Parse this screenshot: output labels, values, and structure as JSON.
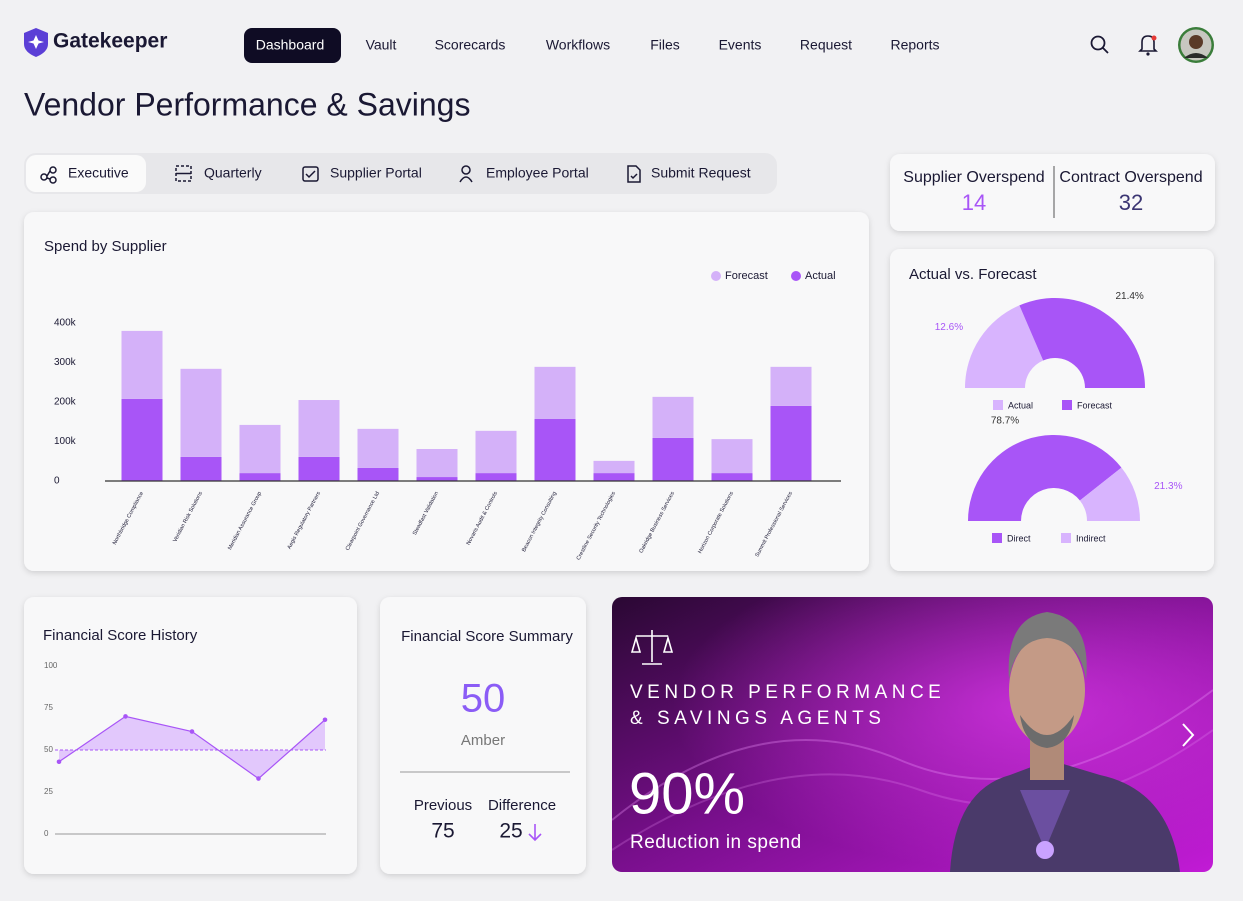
{
  "nav": {
    "brand": "Gatekeeper",
    "items": [
      "Dashboard",
      "Vault",
      "Scorecards",
      "Workflows",
      "Files",
      "Events",
      "Request",
      "Reports"
    ]
  },
  "page_title": "Vendor Performance & Savings",
  "tabs": [
    "Executive",
    "Quarterly",
    "Supplier Portal",
    "Employee Portal",
    "Submit Request"
  ],
  "kpis": [
    {
      "label": "Supplier Overspend",
      "value": 14
    },
    {
      "label": "Contract Overspend",
      "value": 32
    }
  ],
  "summary": {
    "title": "Financial Score Summary",
    "score": 50,
    "status": "Amber",
    "previous_label": "Previous",
    "previous": 75,
    "difference_label": "Difference",
    "difference": 25
  },
  "banner": {
    "lines": [
      "VENDOR PERFORMANCE",
      "& SAVINGS AGENTS"
    ],
    "stat": "90%",
    "caption": "Reduction in spend"
  },
  "chart_data": [
    {
      "type": "bar",
      "title": "Spend by Supplier",
      "stacked": true,
      "categories": [
        "Northbridge Compliance",
        "Veridian Risk Solutions",
        "Meridian Assurance Group",
        "Aegis Regulatory Partners",
        "Clearpoint Governance Ltd",
        "Steadfast Validation",
        "Novaris Audit & Controls",
        "Beacon Integrity Consulting",
        "Crestline Security Technologies",
        "Oakridge Business Services",
        "Horizon Corporate Solutions",
        "Summit Professional Services"
      ],
      "series": [
        {
          "name": "Forecast",
          "color": "#d4b1f9",
          "values": [
            172000,
            223000,
            122000,
            144000,
            99000,
            71000,
            107000,
            132000,
            31000,
            104000,
            86000,
            99000
          ]
        },
        {
          "name": "Actual",
          "color": "#a855f7",
          "values": [
            208000,
            61000,
            20000,
            61000,
            33000,
            10000,
            20000,
            157000,
            20000,
            109000,
            20000,
            190000
          ]
        }
      ],
      "ylim": [
        0,
        400000
      ],
      "yticks": [
        0,
        {
          "value": 100000,
          "label": "100k"
        },
        {
          "value": 200000,
          "label": "200k"
        },
        {
          "value": 300000,
          "label": "300k"
        },
        {
          "value": 400000,
          "label": "400k"
        }
      ],
      "legend": "top-right"
    },
    {
      "type": "half-donut",
      "title": "Actual vs. Forecast",
      "categories": [
        "Actual",
        "Forecast"
      ],
      "values": [
        12.6,
        21.4
      ],
      "value_labels": [
        "12.6%",
        "21.4%"
      ],
      "colors": [
        "#d8b4fe",
        "#a855f7"
      ]
    },
    {
      "type": "half-donut",
      "categories": [
        "Direct",
        "Indirect"
      ],
      "values": [
        78.7,
        21.3
      ],
      "value_labels": [
        "78.7%",
        "21.3%"
      ],
      "colors": [
        "#a855f7",
        "#d8b4fe"
      ]
    },
    {
      "type": "line",
      "title": "Financial Score History",
      "values": [
        43,
        70,
        61,
        33,
        68
      ],
      "color": "#a855f7",
      "reference_line": 50,
      "ylim": [
        0,
        100
      ],
      "yticks": [
        0,
        25,
        50,
        75,
        100
      ]
    }
  ]
}
